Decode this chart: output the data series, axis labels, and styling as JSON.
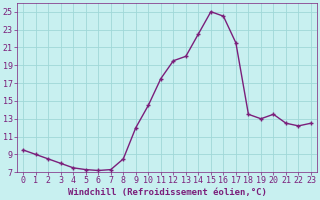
{
  "x": [
    0,
    1,
    2,
    3,
    4,
    5,
    6,
    7,
    8,
    9,
    10,
    11,
    12,
    13,
    14,
    15,
    16,
    17,
    18,
    19,
    20,
    21,
    22,
    23
  ],
  "y": [
    9.5,
    9.0,
    8.5,
    8.0,
    7.5,
    7.3,
    7.2,
    7.3,
    8.5,
    12.0,
    14.5,
    17.5,
    19.5,
    20.0,
    22.5,
    25.0,
    24.5,
    21.5,
    13.5,
    13.0,
    13.5,
    12.5,
    12.2,
    12.5
  ],
  "line_color": "#7b1f7b",
  "marker": "+",
  "bg_color": "#c8f0f0",
  "grid_color": "#a0d8d8",
  "xlabel": "Windchill (Refroidissement éolien,°C)",
  "xlim": [
    -0.5,
    23.5
  ],
  "ylim": [
    7,
    26
  ],
  "yticks": [
    7,
    9,
    11,
    13,
    15,
    17,
    19,
    21,
    23,
    25
  ],
  "xticks": [
    0,
    1,
    2,
    3,
    4,
    5,
    6,
    7,
    8,
    9,
    10,
    11,
    12,
    13,
    14,
    15,
    16,
    17,
    18,
    19,
    20,
    21,
    22,
    23
  ],
  "tick_color": "#7b1f7b",
  "xlabel_fontsize": 6.5,
  "tick_fontsize": 6.0,
  "linewidth": 1.0,
  "markersize": 3.5,
  "markeredgewidth": 1.0
}
